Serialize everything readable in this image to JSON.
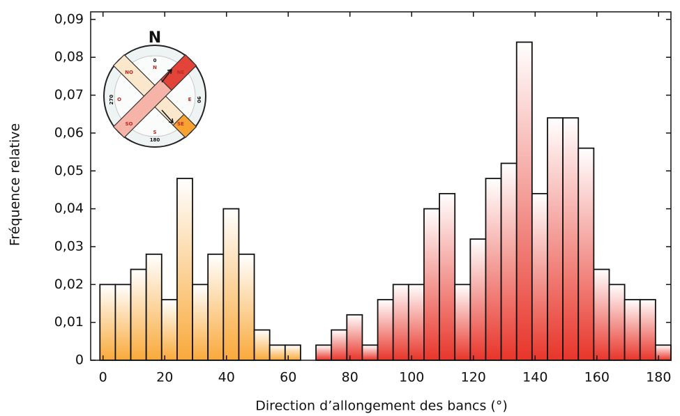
{
  "chart_data": {
    "type": "histogram",
    "xlabel": "Direction d’allongement des bancs (°)",
    "ylabel": "Fréquence relative",
    "xlim": [
      -4,
      184
    ],
    "ylim": [
      0,
      0.092
    ],
    "xticks": [
      0,
      20,
      40,
      60,
      80,
      100,
      120,
      140,
      160,
      180
    ],
    "yticks": [
      0,
      {
        "value": 0.01,
        "label": "0,01"
      },
      {
        "value": 0.02,
        "label": "0,02"
      },
      {
        "value": 0.03,
        "label": "0,03"
      },
      {
        "value": 0.04,
        "label": "0,04"
      },
      {
        "value": 0.05,
        "label": "0,05"
      },
      {
        "value": 0.06,
        "label": "0,06"
      },
      {
        "value": 0.07,
        "label": "0,07"
      },
      {
        "value": 0.08,
        "label": "0,08"
      },
      {
        "value": 0.09,
        "label": "0,09"
      }
    ],
    "series": [
      {
        "color": "#f9a93a",
        "bins": [
          -1,
          4,
          9,
          14,
          19,
          24,
          29,
          34,
          39,
          44,
          49,
          54,
          59,
          64
        ],
        "values": [
          0.02,
          0.02,
          0.024,
          0.028,
          0.016,
          0.048,
          0.02,
          0.028,
          0.04,
          0.028,
          0.008,
          0.004,
          0.004
        ]
      },
      {
        "color": "#e8352a",
        "bins": [
          64,
          69,
          74,
          79,
          84,
          89,
          94,
          99,
          104,
          109,
          114,
          119,
          124,
          129,
          134,
          139,
          144,
          149,
          154,
          159,
          164,
          169,
          174,
          179,
          184
        ],
        "values": [
          0,
          0.004,
          0.008,
          0.012,
          0.004,
          0.016,
          0.02,
          0.02,
          0.04,
          0.044,
          0.02,
          0.032,
          0.048,
          0.052,
          0.084,
          0.044,
          0.064,
          0.064,
          0.056,
          0.024,
          0.02,
          0.016,
          0.016,
          0.004
        ]
      }
    ],
    "inset": {
      "title": "N",
      "labels": [
        "0",
        "N",
        "NE",
        "E",
        "90",
        "SE",
        "S",
        "180",
        "SO",
        "O",
        "270",
        "NO"
      ]
    }
  }
}
